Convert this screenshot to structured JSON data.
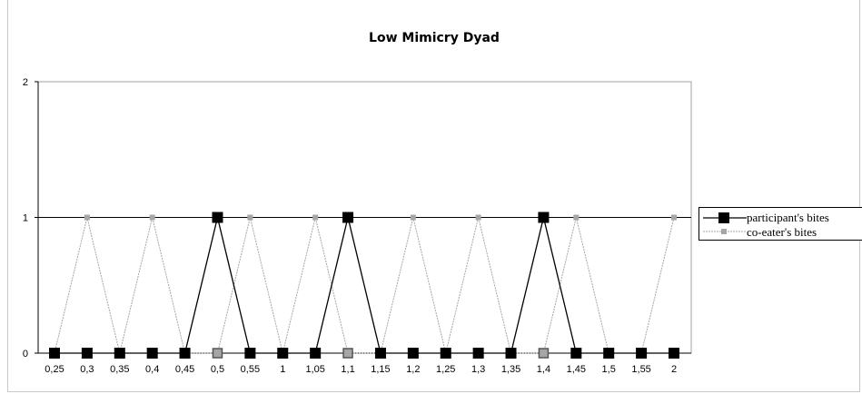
{
  "chart_data": {
    "type": "line",
    "title": "Low Mimicry Dyad",
    "xlabel": "",
    "ylabel": "",
    "categories": [
      "0,25",
      "0,3",
      "0,35",
      "0,4",
      "0,45",
      "0,5",
      "0,55",
      "1",
      "1,05",
      "1,1",
      "1,15",
      "1,2",
      "1,25",
      "1,3",
      "1,35",
      "1,4",
      "1,45",
      "1,5",
      "1,55",
      "2"
    ],
    "ylim": [
      0,
      2
    ],
    "yticks": [
      "0",
      "1",
      "2"
    ],
    "grid": "horizontal",
    "legend_position": "right",
    "series": [
      {
        "name": "participant's bites",
        "color": "#000000",
        "marker": "square-large",
        "values": [
          0,
          0,
          0,
          0,
          0,
          1,
          0,
          0,
          0,
          1,
          0,
          0,
          0,
          0,
          0,
          1,
          0,
          0,
          0,
          0
        ]
      },
      {
        "name": "co-eater's bites",
        "color": "#a6a6a6",
        "marker": "square-small",
        "values": [
          0,
          1,
          0,
          1,
          0,
          0,
          1,
          0,
          1,
          0,
          0,
          1,
          0,
          1,
          0,
          0,
          1,
          0,
          0,
          1
        ]
      }
    ]
  }
}
